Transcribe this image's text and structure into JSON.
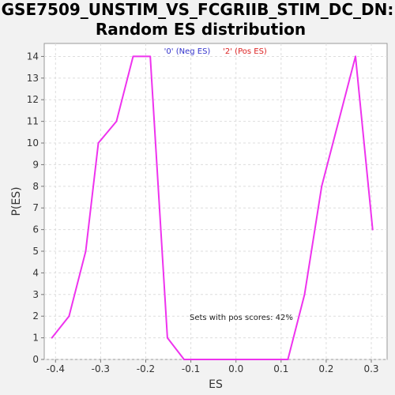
{
  "chart_data": {
    "type": "line",
    "title_line1": "GSE7509_UNSTIM_VS_FCGRIIB_STIM_DC_DN:",
    "title_line2": "Random ES distribution",
    "xlabel": "ES",
    "ylabel": "P(ES)",
    "xlim": [
      -0.425,
      0.335
    ],
    "ylim": [
      0,
      14.6
    ],
    "xticks": [
      -0.4,
      -0.3,
      -0.2,
      -0.1,
      0.0,
      0.1,
      0.2,
      0.3
    ],
    "xtick_labels": [
      "-0.4",
      "-0.3",
      "-0.2",
      "-0.1",
      "0.0",
      "0.1",
      "0.2",
      "0.3"
    ],
    "yticks": [
      0,
      1,
      2,
      3,
      4,
      5,
      6,
      7,
      8,
      9,
      10,
      11,
      12,
      13,
      14
    ],
    "ytick_labels": [
      "0",
      "1",
      "2",
      "3",
      "4",
      "5",
      "6",
      "7",
      "8",
      "9",
      "10",
      "11",
      "12",
      "13",
      "14"
    ],
    "grid": true,
    "legend": [
      {
        "label": "'0' (Neg ES)",
        "color": "#3333cc"
      },
      {
        "label": "'2' (Pos ES)",
        "color": "#dd2222"
      }
    ],
    "annotation": "Sets with pos scores: 42%",
    "series": [
      {
        "color": "#ee33ee",
        "x": [
          -0.408,
          -0.37,
          -0.333,
          -0.305,
          -0.265,
          -0.228,
          -0.19,
          -0.152,
          -0.115,
          0.115,
          0.152,
          0.19,
          0.265,
          0.303
        ],
        "y": [
          1,
          2,
          5,
          10,
          11,
          14,
          14,
          1,
          0,
          0,
          3,
          8,
          14,
          6
        ]
      }
    ]
  }
}
